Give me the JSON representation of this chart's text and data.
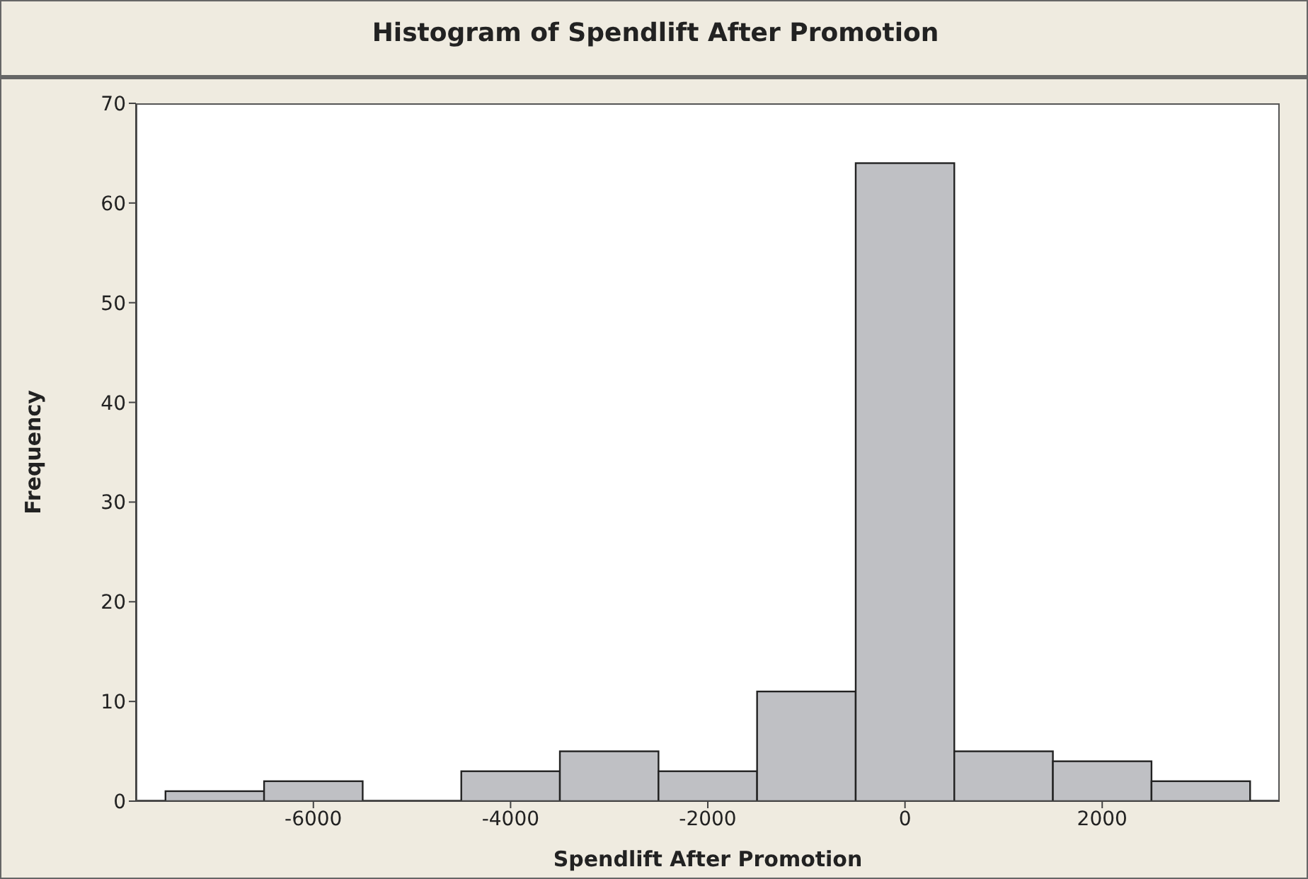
{
  "chart_data": {
    "type": "histogram",
    "title": "Histogram of Spendlift After Promotion",
    "xlabel": "Spendlift After Promotion",
    "ylabel": "Frequency",
    "bins": [
      -7500,
      -6500,
      -5500,
      -4500,
      -3500,
      -2500,
      -1500,
      -500,
      500,
      1500,
      2500,
      3500
    ],
    "values": [
      1,
      2,
      0,
      3,
      5,
      3,
      11,
      64,
      5,
      4,
      2
    ],
    "color": "#bfc0c4",
    "xlim": [
      -7800,
      3800
    ],
    "xticks": [
      -6000,
      -4000,
      -2000,
      0,
      2000
    ],
    "ylim": [
      0,
      70
    ],
    "yticks": [
      0,
      10,
      20,
      30,
      40,
      50,
      60,
      70
    ],
    "grid": false
  }
}
